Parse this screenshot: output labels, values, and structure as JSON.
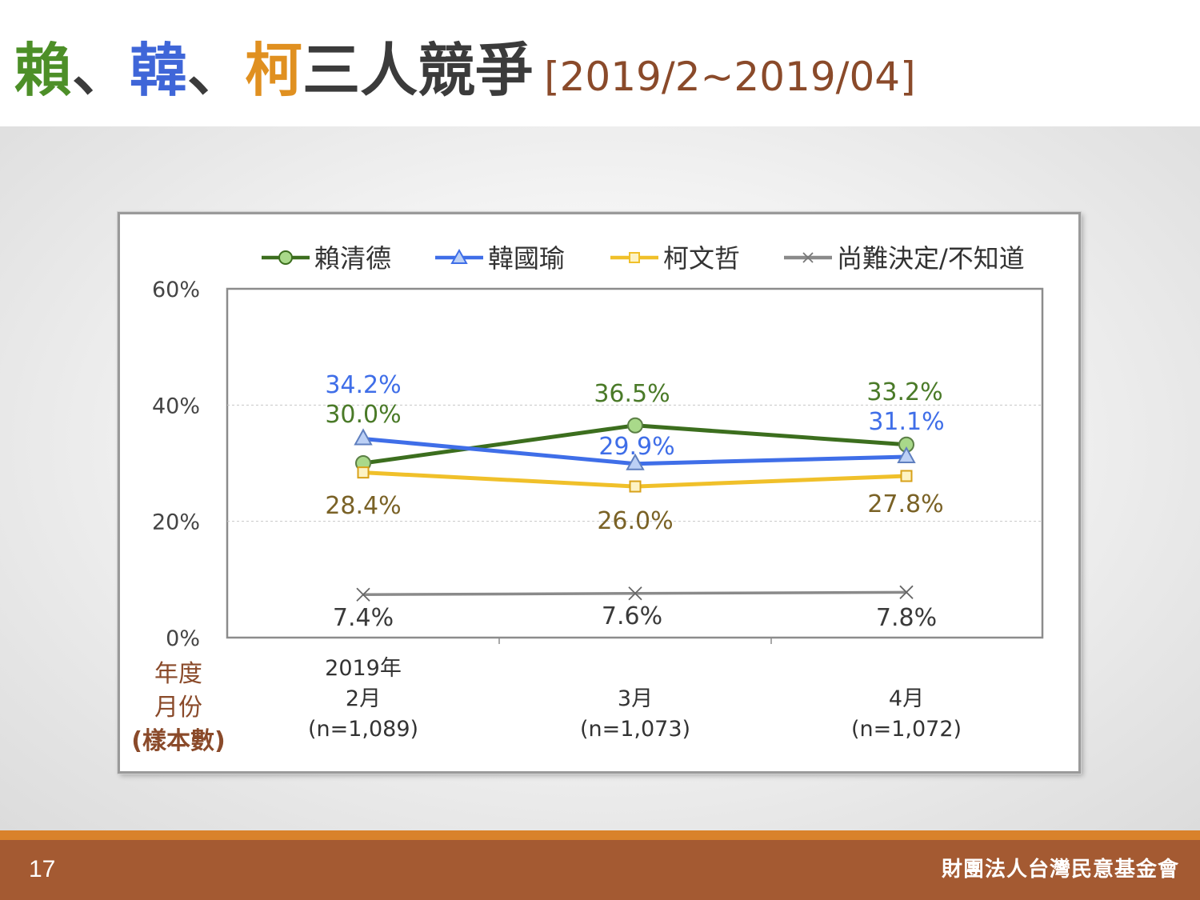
{
  "header": {
    "title_part1": "賴",
    "sep1": "、",
    "title_part2": "韓",
    "sep2": "、",
    "title_part3": "柯",
    "title_rest": "三人競爭",
    "date_range": "[2019/2~2019/04]"
  },
  "footer": {
    "page_number": "17",
    "organization": "財團法人台灣民意基金會"
  },
  "colors": {
    "green": "#3c6e1e",
    "blue": "#3f6ee8",
    "yellow": "#f0c02a",
    "gray": "#8a8a8a",
    "brown": "#8a4a2a"
  },
  "chart_data": {
    "type": "line",
    "categories": [
      "2019年 2月",
      "3月",
      "4月"
    ],
    "x_tick_lines": [
      [
        "2019年",
        "2月",
        "(n=1,089)"
      ],
      [
        "3月",
        "(n=1,073)"
      ],
      [
        "4月",
        "(n=1,072)"
      ]
    ],
    "xaxis_label_lines": [
      "年度",
      "月份",
      "(樣本數)"
    ],
    "yticks": [
      "60%",
      "40%",
      "20%",
      "0%"
    ],
    "ylim": [
      0,
      60
    ],
    "grid": "horizontal dashed",
    "legend_position": "top",
    "series": [
      {
        "name": "賴清德",
        "key": "green",
        "marker": "circle",
        "values": [
          30.0,
          36.5,
          33.2
        ],
        "labels": [
          "30.0%",
          "36.5%",
          "33.2%"
        ]
      },
      {
        "name": "韓國瑜",
        "key": "blue",
        "marker": "triangle",
        "values": [
          34.2,
          29.9,
          31.1
        ],
        "labels": [
          "34.2%",
          "29.9%",
          "31.1%"
        ]
      },
      {
        "name": "柯文哲",
        "key": "yellow",
        "marker": "square",
        "values": [
          28.4,
          26.0,
          27.8
        ],
        "labels": [
          "28.4%",
          "26.0%",
          "27.8%"
        ]
      },
      {
        "name": "尚難決定/不知道",
        "key": "gray",
        "marker": "x",
        "values": [
          7.4,
          7.6,
          7.8
        ],
        "labels": [
          "7.4%",
          "7.6%",
          "7.8%"
        ]
      }
    ]
  }
}
